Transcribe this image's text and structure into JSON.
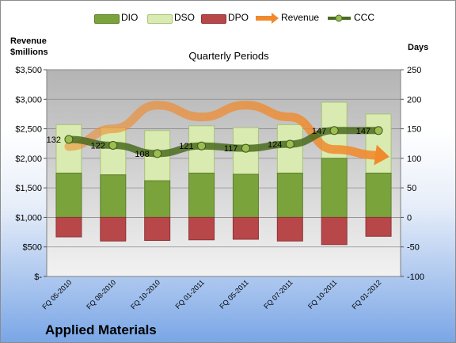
{
  "chart_data": {
    "type": "bar",
    "company": "Applied Materials",
    "subtitle": "Quarterly Periods",
    "left_axis_title": [
      "Revenue",
      "$millions"
    ],
    "right_axis_title": "Days",
    "categories": [
      "FQ 05-2010",
      "FQ 08-2010",
      "FQ 10-2010",
      "FQ 01-2011",
      "FQ 05-2011",
      "FQ 07-2011",
      "FQ 10-2011",
      "FQ 01-2012"
    ],
    "left_axis": {
      "min": 0,
      "max": 3500,
      "ticks": [
        "$-",
        "$500",
        "$1,000",
        "$1,500",
        "$2,000",
        "$2,500",
        "$3,000",
        "$3,500"
      ],
      "tick_values": [
        0,
        500,
        1000,
        1500,
        2000,
        2500,
        3000,
        3500
      ]
    },
    "right_axis": {
      "min": -100,
      "max": 250,
      "ticks": [
        "-100",
        "-50",
        "0",
        "50",
        "100",
        "150",
        "200",
        "250"
      ],
      "tick_values": [
        -100,
        -50,
        0,
        50,
        100,
        150,
        200,
        250
      ]
    },
    "series": [
      {
        "name": "DIO",
        "axis": "right",
        "kind": "stacked-bar",
        "color": "#7aa33c",
        "values": [
          75,
          72,
          62,
          75,
          73,
          75,
          100,
          75
        ]
      },
      {
        "name": "DSO",
        "axis": "right",
        "kind": "stacked-bar",
        "color": "#d9ebb0",
        "values": [
          82,
          80,
          85,
          80,
          79,
          82,
          95,
          100
        ]
      },
      {
        "name": "DPO",
        "axis": "right",
        "kind": "bar-negative",
        "color": "#b8474a",
        "values": [
          -33,
          -40,
          -39,
          -38,
          -37,
          -40,
          -46,
          -32
        ]
      },
      {
        "name": "Revenue",
        "axis": "left",
        "kind": "line",
        "color": "#f08a2c",
        "values": [
          2200,
          2500,
          2900,
          2700,
          2900,
          2700,
          2150,
          2050
        ]
      },
      {
        "name": "CCC",
        "axis": "right",
        "kind": "line",
        "color": "#4a6b1f",
        "values": [
          132,
          122,
          108,
          121,
          117,
          124,
          147,
          147
        ],
        "labels": [
          "132",
          "122",
          "108",
          "121",
          "117",
          "124",
          "147",
          "147"
        ]
      }
    ],
    "grid": true,
    "legend_position": "top"
  }
}
